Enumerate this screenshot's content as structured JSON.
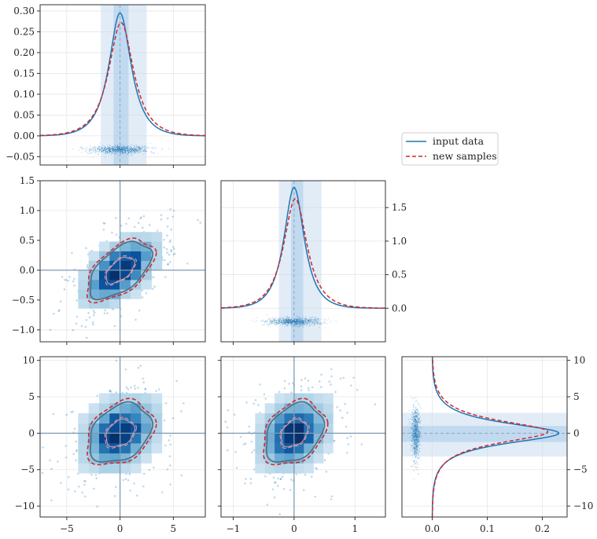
{
  "chart_data": {
    "type": "corner",
    "colors": {
      "input": "#1f77b4",
      "samples": "#d62728",
      "axis": "#333333",
      "grid": "#e6e6e6",
      "band": "#c9ddf0",
      "band_inner": "#9ec6e6",
      "ref_line": "#7f9bb4",
      "contour": "#4f6f8a"
    },
    "legend": {
      "position": "right-of-top-row",
      "entries": [
        {
          "label": "input data",
          "style": "solid",
          "color": "#1f77b4"
        },
        {
          "label": "new samples",
          "style": "dashed",
          "color": "#d62728"
        }
      ]
    },
    "variables": [
      {
        "range": [
          -7.5,
          8
        ],
        "ticks": [
          -5,
          0,
          5
        ],
        "center": 0,
        "band_outer": [
          -1.8,
          2.5
        ],
        "band_inner": [
          -0.6,
          0.8
        ]
      },
      {
        "range": [
          -1.2,
          1.5
        ],
        "ticks": [
          -1,
          0,
          1
        ],
        "center": 0,
        "band_outer": [
          -0.25,
          0.45
        ],
        "band_inner": [
          -0.05,
          0.15
        ]
      },
      {
        "range": [
          -11.5,
          10.5
        ],
        "ticks": [
          -10,
          -5,
          0,
          5,
          10
        ],
        "center": 0,
        "band_outer": [
          -3.2,
          2.8
        ],
        "band_inner": [
          -1.2,
          1.0
        ]
      }
    ],
    "diagonals": [
      {
        "variable": 0,
        "orientation": "vertical",
        "ylim": [
          -0.07,
          0.315
        ],
        "yticks": [
          -0.05,
          0.0,
          0.05,
          0.1,
          0.15,
          0.2,
          0.25,
          0.3
        ],
        "ytick_labels": [
          "−0.05",
          "0.00",
          "0.05",
          "0.10",
          "0.15",
          "0.20",
          "0.25",
          "0.30"
        ],
        "tick_side": "left",
        "input_peak": 0.295,
        "input_width": 1.25,
        "samples_peak": 0.272,
        "samples_width": 1.4,
        "samples_shift": 0.1,
        "rug_level": -0.033
      },
      {
        "variable": 1,
        "orientation": "vertical",
        "ylim": [
          -0.5,
          1.9
        ],
        "yticks": [
          0.0,
          0.5,
          1.0,
          1.5
        ],
        "ytick_labels": [
          "0.0",
          "0.5",
          "1.0",
          "1.5"
        ],
        "tick_side": "right",
        "input_peak": 1.8,
        "input_width": 0.2,
        "samples_peak": 1.63,
        "samples_width": 0.23,
        "samples_shift": 0.02,
        "rug_level": -0.2
      },
      {
        "variable": 2,
        "orientation": "horizontal",
        "xlim": [
          -0.055,
          0.245
        ],
        "xticks": [
          0.0,
          0.1,
          0.2
        ],
        "xtick_labels": [
          "0.0",
          "0.1",
          "0.2"
        ],
        "tick_side": "right",
        "input_peak": 0.23,
        "input_width": 1.7,
        "samples_peak": 0.21,
        "samples_width": 1.85,
        "samples_shift": 0.2,
        "rug_level": -0.03
      }
    ],
    "pairs": [
      {
        "x": 0,
        "y": 1,
        "correlation": 0.55
      },
      {
        "x": 0,
        "y": 2,
        "correlation": 0.3
      },
      {
        "x": 1,
        "y": 2,
        "correlation": 0.3
      }
    ],
    "tick_labels": {
      "var0_x": [
        "−5",
        "0",
        "5"
      ],
      "var1_x": [
        "−1",
        "0",
        "1"
      ],
      "var1_y": [
        "−1.0",
        "−0.5",
        "0.0",
        "0.5",
        "1.0",
        "1.5"
      ],
      "var2_y": [
        "−10",
        "−5",
        "0",
        "5",
        "10"
      ]
    }
  }
}
